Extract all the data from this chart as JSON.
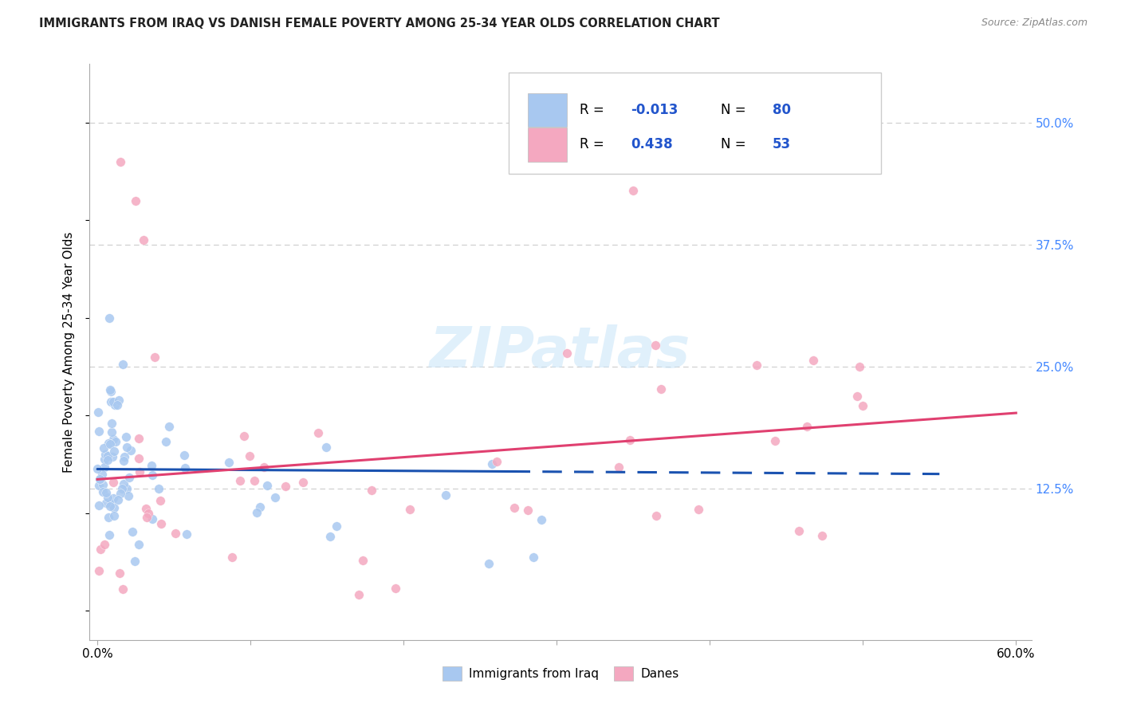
{
  "title": "IMMIGRANTS FROM IRAQ VS DANISH FEMALE POVERTY AMONG 25-34 YEAR OLDS CORRELATION CHART",
  "source": "Source: ZipAtlas.com",
  "ylabel": "Female Poverty Among 25-34 Year Olds",
  "xlim": [
    0,
    60
  ],
  "ylim": [
    0,
    55
  ],
  "R_iraq": -0.013,
  "N_iraq": 80,
  "R_danes": 0.438,
  "N_danes": 53,
  "legend_label1": "Immigrants from Iraq",
  "legend_label2": "Danes",
  "watermark": "ZIPatlas",
  "iraq_color": "#a8c8f0",
  "danes_color": "#f4a8c0",
  "iraq_line_color": "#1a52b0",
  "danes_line_color": "#e04070",
  "grid_color": "#cccccc",
  "right_tick_color": "#4488ff",
  "title_color": "#222222",
  "source_color": "#888888"
}
